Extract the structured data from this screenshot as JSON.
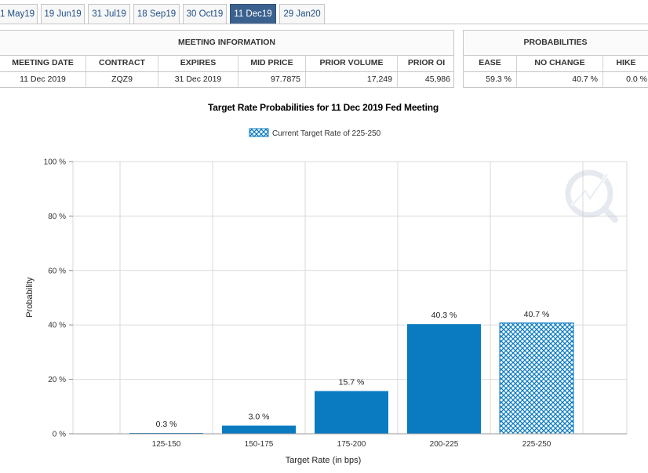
{
  "tabs": [
    {
      "label": "1 May19",
      "active": false
    },
    {
      "label": "19 Jun19",
      "active": false
    },
    {
      "label": "31 Jul19",
      "active": false
    },
    {
      "label": "18 Sep19",
      "active": false
    },
    {
      "label": "30 Oct19",
      "active": false
    },
    {
      "label": "11 Dec19",
      "active": true
    },
    {
      "label": "29 Jan20",
      "active": false
    }
  ],
  "meeting_info": {
    "header": "MEETING INFORMATION",
    "columns": [
      "MEETING DATE",
      "CONTRACT",
      "EXPIRES",
      "MID PRICE",
      "PRIOR VOLUME",
      "PRIOR OI"
    ],
    "values": [
      "11 Dec 2019",
      "ZQZ9",
      "31 Dec 2019",
      "97.7875",
      "17,249",
      "45,986"
    ]
  },
  "probabilities": {
    "header": "PROBABILITIES",
    "columns": [
      "EASE",
      "NO CHANGE",
      "HIKE"
    ],
    "values": [
      "59.3 %",
      "40.7 %",
      "0.0 %"
    ]
  },
  "chart_data": {
    "type": "bar",
    "title": "Target Rate Probabilities for 11 Dec 2019 Fed Meeting",
    "legend": {
      "label": "Current Target Rate of 225-250",
      "position": "top-center"
    },
    "categories": [
      "125-150",
      "150-175",
      "175-200",
      "200-225",
      "225-250"
    ],
    "values": [
      0.3,
      3.0,
      15.7,
      40.3,
      40.7
    ],
    "data_labels": [
      "0.3 %",
      "3.0 %",
      "15.7 %",
      "40.3 %",
      "40.7 %"
    ],
    "highlighted_category": "225-250",
    "xlabel": "Target Rate (in bps)",
    "ylabel": "Probability",
    "ylim": [
      0,
      100
    ],
    "yticks": [
      0,
      20,
      40,
      60,
      80,
      100
    ],
    "ytick_labels": [
      "0 %",
      "20 %",
      "40 %",
      "60 %",
      "80 %",
      "100 %"
    ],
    "grid": true,
    "colors": {
      "bar": "#0a7bc1",
      "highlight": "#0a7bc1",
      "grid": "#d9d9d9"
    }
  }
}
